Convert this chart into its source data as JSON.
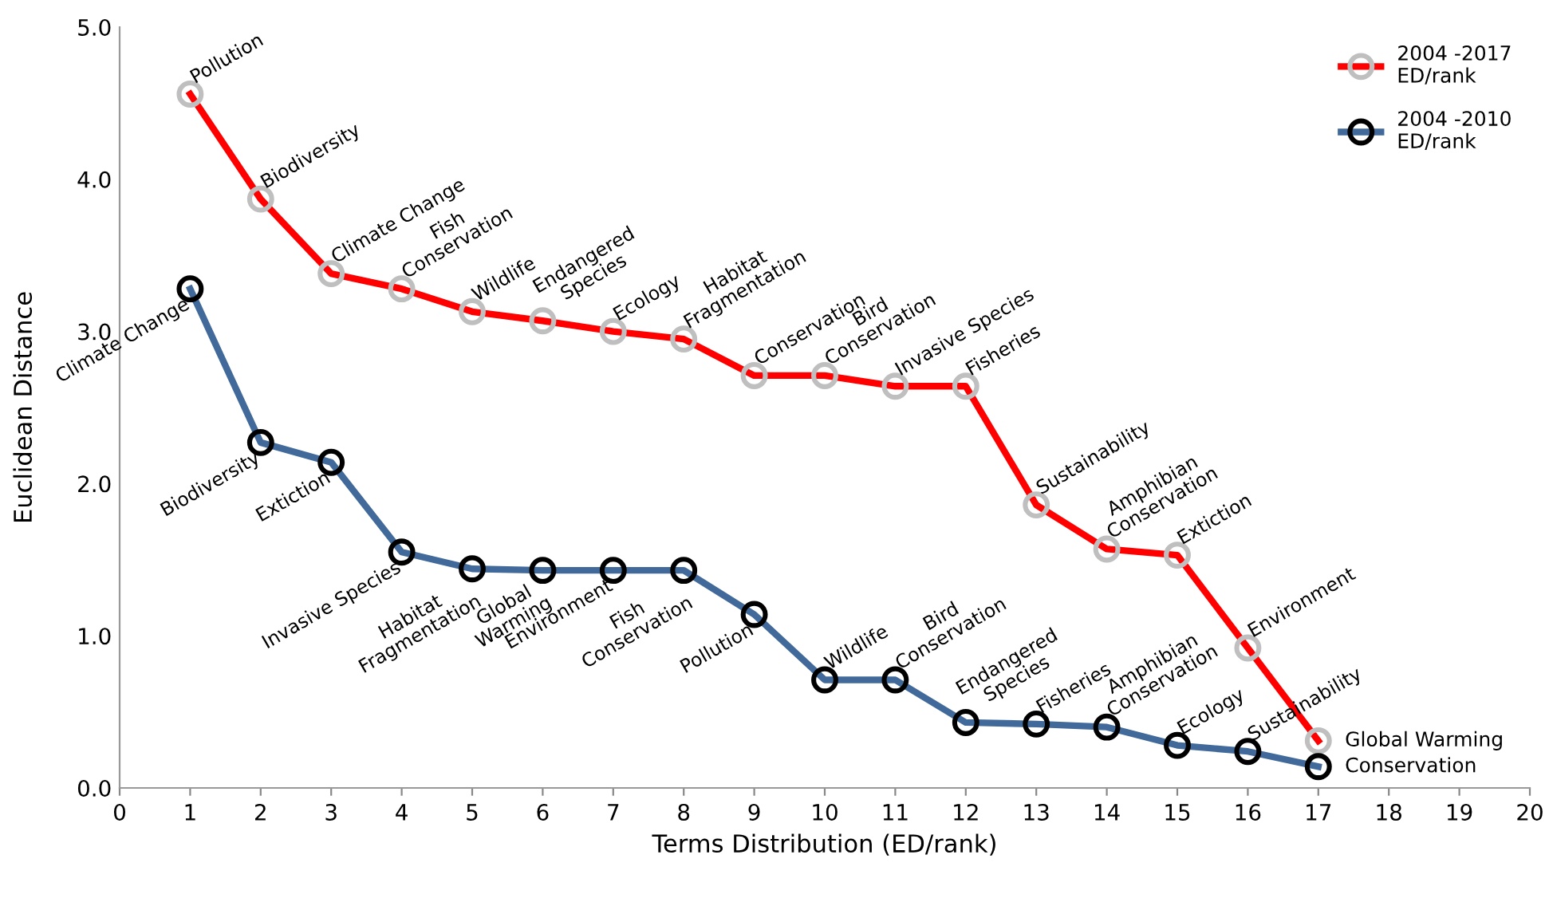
{
  "chart_data": {
    "type": "line",
    "xlabel": "Terms Distribution (ED/rank)",
    "ylabel": "Euclidean Distance",
    "x": [
      1,
      2,
      3,
      4,
      5,
      6,
      7,
      8,
      9,
      10,
      11,
      12,
      13,
      14,
      15,
      16,
      17
    ],
    "series": [
      {
        "name": "2004 -2017\nED/rank",
        "color": "#ff0000",
        "values": [
          4.56,
          3.87,
          3.38,
          3.28,
          3.13,
          3.07,
          3.0,
          2.95,
          2.71,
          2.71,
          2.64,
          2.64,
          1.86,
          1.57,
          1.53,
          0.92,
          0.31
        ]
      },
      {
        "name": "2004 -2010\nED/rank",
        "color": "#41699a",
        "values": [
          3.28,
          2.27,
          2.14,
          1.55,
          1.44,
          1.43,
          1.43,
          1.43,
          1.14,
          0.71,
          0.71,
          0.43,
          0.42,
          0.4,
          0.28,
          0.24,
          0.14
        ]
      }
    ],
    "xlim": [
      0,
      20
    ],
    "xticks": [
      0,
      1,
      2,
      3,
      4,
      5,
      6,
      7,
      8,
      9,
      10,
      11,
      12,
      13,
      14,
      15,
      16,
      17,
      18,
      19,
      20
    ],
    "ylim": [
      0,
      5
    ],
    "yticks": [
      {
        "value": 0,
        "label": "0.0"
      },
      {
        "value": 1,
        "label": "1.0"
      },
      {
        "value": 2,
        "label": "2.0"
      },
      {
        "value": 3,
        "label": "3.0"
      },
      {
        "value": 4,
        "label": "4.0"
      },
      {
        "value": 5,
        "label": "5.0"
      }
    ],
    "marker": "circle",
    "line_style": "solid",
    "legend": "top right",
    "grid": false,
    "annotations": [
      {
        "text": "Pollution",
        "x": 1,
        "y": 4.56
      },
      {
        "text": "Biodiversity",
        "x": 2,
        "y": 3.87
      },
      {
        "text": "Climate Change",
        "x": 3,
        "y": 3.38
      },
      {
        "text": "Fish\nConservation",
        "x": 4,
        "y": 3.28
      },
      {
        "text": "Wildlife",
        "x": 5,
        "y": 3.13
      },
      {
        "text": "Endangered\nSpecies",
        "x": 6,
        "y": 3.07
      },
      {
        "text": "Ecology",
        "x": 7,
        "y": 3.0
      },
      {
        "text": "Habitat\nFragmentation",
        "x": 8,
        "y": 2.95
      },
      {
        "text": "Conservation",
        "x": 9,
        "y": 2.71
      },
      {
        "text": "Bird\nConservation",
        "x": 10,
        "y": 2.71
      },
      {
        "text": "Invasive Species",
        "x": 11,
        "y": 2.64
      },
      {
        "text": "Fisheries",
        "x": 12,
        "y": 2.64
      },
      {
        "text": "Sustainability",
        "x": 13,
        "y": 1.86
      },
      {
        "text": "Amphibian\nConservation",
        "x": 14,
        "y": 1.57
      },
      {
        "text": "Extiction",
        "x": 15,
        "y": 1.53
      },
      {
        "text": "Environment",
        "x": 16,
        "y": 0.92
      },
      {
        "text": "Global Warming",
        "x": 17,
        "y": 0.31
      },
      {
        "text": "Climate Change",
        "x": 1,
        "y": 3.28
      },
      {
        "text": "Biodiversity",
        "x": 2,
        "y": 2.27
      },
      {
        "text": "Extiction",
        "x": 3,
        "y": 2.14
      },
      {
        "text": "Invasive Species",
        "x": 4,
        "y": 1.55
      },
      {
        "text": "Habitat\nFragmentation",
        "x": 5,
        "y": 1.44
      },
      {
        "text": "Global\nWarming",
        "x": 6,
        "y": 1.43
      },
      {
        "text": "Environment",
        "x": 7,
        "y": 1.43
      },
      {
        "text": "Fish\nConservation",
        "x": 8,
        "y": 1.43
      },
      {
        "text": "Pollution",
        "x": 9,
        "y": 1.14
      },
      {
        "text": "Wildlife",
        "x": 10,
        "y": 0.71
      },
      {
        "text": "Bird\nConservation",
        "x": 11,
        "y": 0.71
      },
      {
        "text": "Endangered\nSpecies",
        "x": 12,
        "y": 0.43
      },
      {
        "text": "Fisheries",
        "x": 13,
        "y": 0.42
      },
      {
        "text": "Amphibian\nConservation",
        "x": 14,
        "y": 0.4
      },
      {
        "text": "Ecology",
        "x": 15,
        "y": 0.28
      },
      {
        "text": "Sustainability",
        "x": 16,
        "y": 0.24
      },
      {
        "text": "Conservation",
        "x": 17,
        "y": 0.14
      }
    ]
  }
}
